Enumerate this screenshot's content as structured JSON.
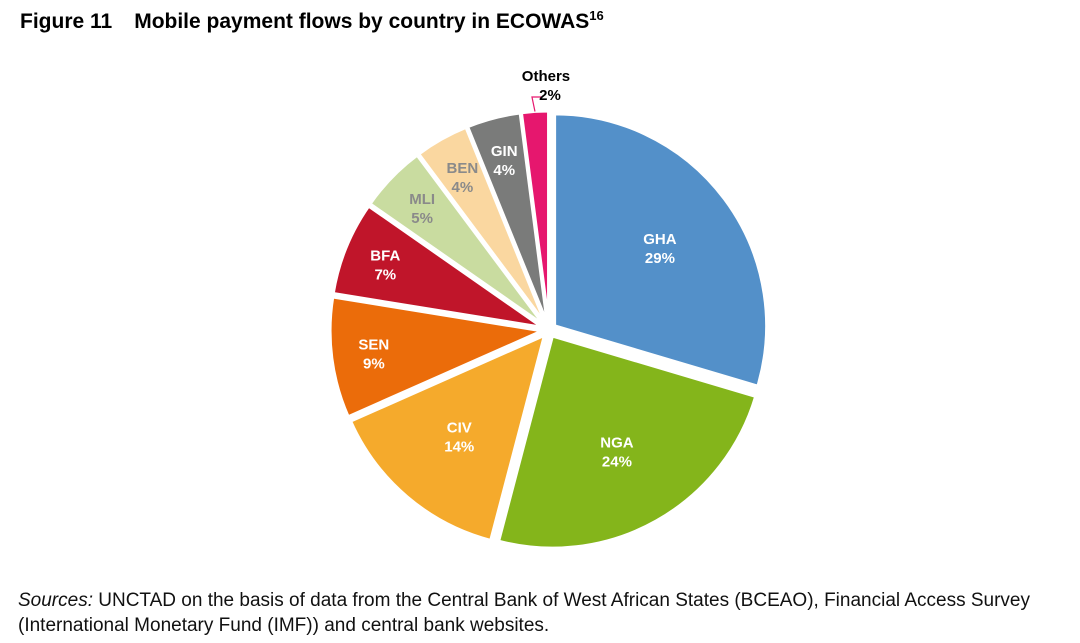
{
  "title": {
    "figure_number": "Figure 11",
    "text": "Mobile payment flows by country in ECOWAS",
    "footnote_ref": "16"
  },
  "chart_data": {
    "type": "pie",
    "title": "Mobile payment flows by country in ECOWAS",
    "start": "12 o'clock",
    "direction": "clockwise",
    "exploded": true,
    "slices": [
      {
        "label": "GHA",
        "value": 29,
        "value_label": "29%",
        "color": "#5390C9",
        "label_color": "#FFFFFF"
      },
      {
        "label": "NGA",
        "value": 24,
        "value_label": "24%",
        "color": "#84B51B",
        "label_color": "#FFFFFF"
      },
      {
        "label": "CIV",
        "value": 14,
        "value_label": "14%",
        "color": "#F5AA2C",
        "label_color": "#FFFFFF"
      },
      {
        "label": "SEN",
        "value": 9,
        "value_label": "9%",
        "color": "#EB6C0A",
        "label_color": "#FFFFFF"
      },
      {
        "label": "BFA",
        "value": 7,
        "value_label": "7%",
        "color": "#C0152A",
        "label_color": "#FFFFFF"
      },
      {
        "label": "MLI",
        "value": 5,
        "value_label": "5%",
        "color": "#C9DCA0",
        "label_color": "#8A8A8A"
      },
      {
        "label": "BEN",
        "value": 4,
        "value_label": "4%",
        "color": "#FAD7A0",
        "label_color": "#8A8A8A"
      },
      {
        "label": "GIN",
        "value": 4,
        "value_label": "4%",
        "color": "#7A7B7A",
        "label_color": "#FFFFFF"
      },
      {
        "label": "Others",
        "value": 2,
        "value_label": "2%",
        "color": "#E6176E",
        "label_color": "#000000",
        "label_outside": true
      }
    ]
  },
  "source": {
    "prefix": "Sources:",
    "text": " UNCTAD on the basis of data from the Central Bank of West African States (BCEAO), Financial Access Survey (International Monetary Fund (IMF)) and central bank websites."
  }
}
